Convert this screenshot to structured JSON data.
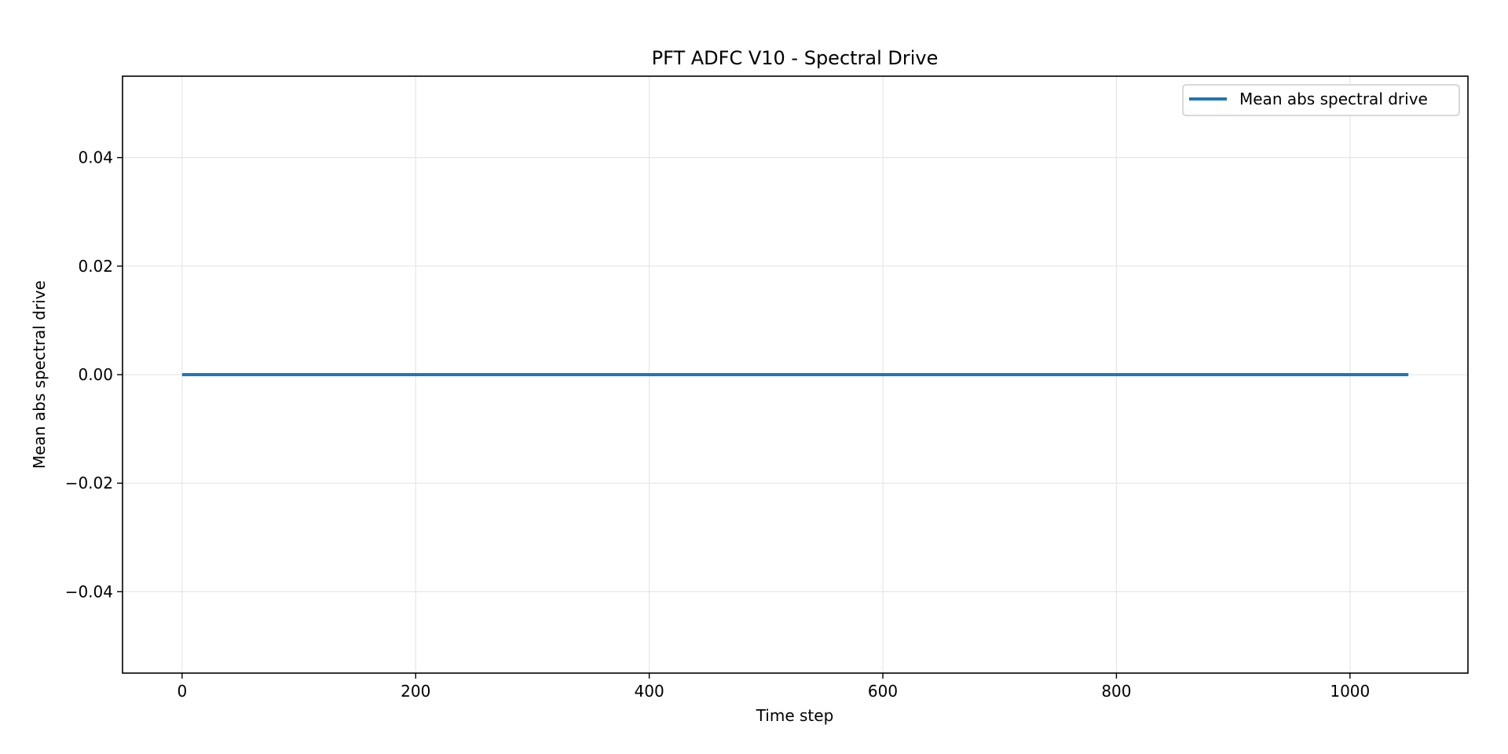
{
  "chart_data": {
    "type": "line",
    "title": "PFT ADFC V10 - Spectral Drive",
    "xlabel": "Time step",
    "ylabel": "Mean abs spectral drive",
    "xlim": [
      -51,
      1101
    ],
    "ylim": [
      -0.055,
      0.055
    ],
    "x_ticks": [
      0,
      200,
      400,
      600,
      800,
      1000
    ],
    "y_ticks": [
      -0.04,
      -0.02,
      0.0,
      0.02,
      0.04
    ],
    "x_tick_labels": [
      "0",
      "200",
      "400",
      "600",
      "800",
      "1000"
    ],
    "y_tick_labels": [
      "−0.04",
      "−0.02",
      "0.00",
      "0.02",
      "0.04"
    ],
    "grid": true,
    "legend_position": "top-right",
    "series": [
      {
        "name": "Mean abs spectral drive",
        "color": "#1f77b4",
        "x": [
          0,
          1050
        ],
        "y": [
          0.0,
          0.0
        ]
      }
    ]
  }
}
